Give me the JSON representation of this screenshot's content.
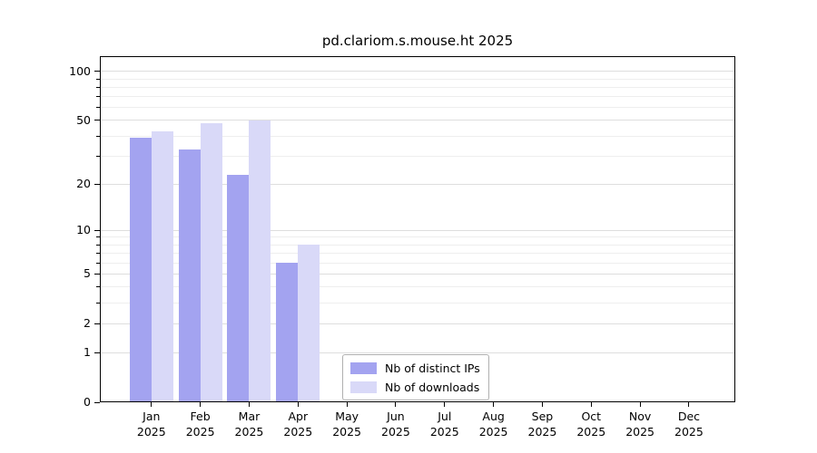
{
  "chart_data": {
    "type": "bar",
    "title": "pd.clariom.s.mouse.ht 2025",
    "x_categories": [
      "Jan",
      "Feb",
      "Mar",
      "Apr",
      "May",
      "Jun",
      "Jul",
      "Aug",
      "Sep",
      "Oct",
      "Nov",
      "Dec"
    ],
    "x_year": "2025",
    "series": [
      {
        "name": "Nb of distinct IPs",
        "color": "#a3a3f0",
        "values": [
          39,
          33,
          23,
          6,
          0,
          0,
          0,
          0,
          0,
          0,
          0,
          0
        ]
      },
      {
        "name": "Nb of downloads",
        "color": "#d9d9f8",
        "values": [
          43,
          48,
          50,
          8,
          0,
          0,
          0,
          0,
          0,
          0,
          0,
          0
        ]
      }
    ],
    "y_scale": "log10(value+1)",
    "y_major_ticks": [
      0,
      1,
      2,
      5,
      10,
      20,
      50,
      100
    ],
    "y_minor_ticks": [
      3,
      4,
      6,
      7,
      8,
      9,
      30,
      40,
      60,
      70,
      80,
      90
    ],
    "ylim": [
      0,
      124
    ],
    "grid": "horizontal",
    "legend_position": "bottom-center-inside",
    "colors": {
      "frame": "#000000",
      "grid_major": "#dedede",
      "grid_minor": "#eeeeee",
      "background": "#ffffff",
      "text": "#000000"
    }
  }
}
